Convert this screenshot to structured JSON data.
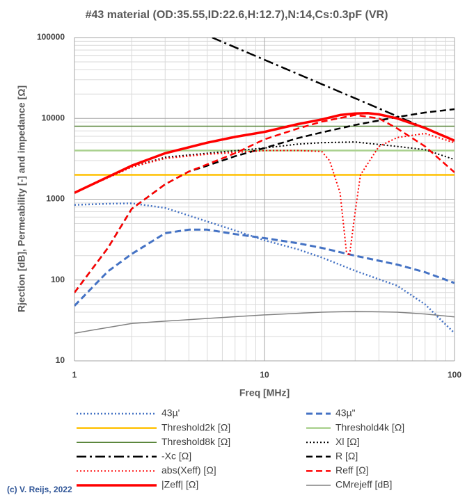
{
  "chart_data": {
    "type": "line",
    "title": "#43 material  (OD:35.55,ID:22.6,H:12.7),N:14,Cs:0.3pF (VR)",
    "x_label": "Freq [MHz]",
    "y_label": "Rjection [dB], Permeability [-] and impedance [Ω]",
    "credit": "(c) V. Reijs, 2022",
    "xscale": "log",
    "yscale": "log",
    "xlim": [
      1,
      100
    ],
    "xticks": [
      1,
      10,
      100
    ],
    "ylim": [
      10,
      100000
    ],
    "yticks": [
      10,
      100,
      1000,
      10000,
      100000
    ],
    "grid": true,
    "minor_grid": true,
    "legend": "bottom",
    "series": [
      {
        "name": "43µ'",
        "color": "#4472c4",
        "dash": "dot",
        "width": 2.5,
        "x": [
          1,
          1.5,
          2,
          3,
          5,
          7,
          10,
          15,
          20,
          30,
          50,
          70,
          100
        ],
        "values": [
          850,
          880,
          890,
          780,
          530,
          410,
          310,
          240,
          190,
          130,
          85,
          50,
          22
        ]
      },
      {
        "name": "43µ\"",
        "color": "#4472c4",
        "dash": "dash",
        "width": 3,
        "x": [
          1,
          1.5,
          2,
          3,
          4,
          5,
          7,
          10,
          15,
          20,
          30,
          50,
          70,
          100
        ],
        "values": [
          48,
          128,
          210,
          380,
          420,
          420,
          370,
          330,
          285,
          250,
          200,
          155,
          125,
          92
        ]
      },
      {
        "name": "Threshold2k [Ω]",
        "color": "#ffc000",
        "dash": "solid",
        "width": 2.5,
        "x": [
          1,
          100
        ],
        "values": [
          2000,
          2000
        ]
      },
      {
        "name": "Threshold4k [Ω]",
        "color": "#a9d18e",
        "dash": "solid",
        "width": 2.5,
        "x": [
          1,
          100
        ],
        "values": [
          4000,
          4000
        ]
      },
      {
        "name": "Threshold8k [Ω]",
        "color": "#548235",
        "dash": "solid",
        "width": 1.5,
        "x": [
          1,
          100
        ],
        "values": [
          8000,
          8000
        ]
      },
      {
        "name": "Xl [Ω]",
        "color": "#000000",
        "dash": "dot",
        "width": 2,
        "x": [
          1,
          2,
          3,
          5,
          10,
          15,
          20,
          30,
          50,
          70,
          100
        ],
        "values": [
          1200,
          2500,
          3300,
          3700,
          4300,
          4800,
          5000,
          5100,
          4500,
          4100,
          3100
        ]
      },
      {
        "name": "-Xc [Ω]",
        "color": "#000000",
        "dash": "dashdot",
        "width": 2.5,
        "x": [
          5.305,
          10,
          20,
          30,
          50,
          70,
          100
        ],
        "values": [
          100000,
          53050,
          26500,
          17700,
          10600,
          7580,
          5305
        ]
      },
      {
        "name": "R [Ω]",
        "color": "#000000",
        "dash": "dash",
        "width": 2.5,
        "x": [
          1,
          1.5,
          2,
          3,
          4,
          5,
          7,
          10,
          15,
          20,
          30,
          50,
          70,
          100
        ],
        "values": [
          70,
          250,
          760,
          1530,
          2200,
          2600,
          3400,
          4300,
          5700,
          6700,
          8300,
          10400,
          11800,
          13000
        ]
      },
      {
        "name": "abs(Xeff) [Ω]",
        "color": "#ff0000",
        "dash": "dot",
        "width": 2,
        "x": [
          1,
          2,
          3,
          5,
          10,
          15,
          20,
          22,
          25,
          27,
          28,
          30,
          32,
          40,
          50,
          70,
          100
        ],
        "values": [
          1200,
          2500,
          3200,
          3600,
          4000,
          4000,
          3900,
          3000,
          1200,
          220,
          200,
          700,
          2000,
          4500,
          5800,
          6500,
          5000
        ]
      },
      {
        "name": "Reff [Ω]",
        "color": "#ff0000",
        "dash": "dash",
        "width": 2.5,
        "x": [
          1,
          1.5,
          2,
          3,
          4,
          5,
          7,
          10,
          15,
          20,
          30,
          40,
          50,
          70,
          100
        ],
        "values": [
          70,
          250,
          760,
          1530,
          2200,
          2700,
          3700,
          5500,
          7500,
          9100,
          11000,
          10000,
          7500,
          4500,
          2150
        ]
      },
      {
        "name": "|Zeff| [Ω]",
        "color": "#ff0000",
        "dash": "solid",
        "width": 3.5,
        "x": [
          1,
          2,
          3,
          5,
          7,
          10,
          15,
          20,
          25,
          30,
          35,
          40,
          50,
          70,
          100
        ],
        "values": [
          1200,
          2600,
          3700,
          5000,
          5900,
          6800,
          8500,
          9700,
          11000,
          11500,
          11600,
          11200,
          10000,
          7600,
          5300
        ]
      },
      {
        "name": "CMrejeff [dB]",
        "color": "#808080",
        "dash": "solid",
        "width": 1.5,
        "x": [
          1,
          2,
          3,
          5,
          10,
          20,
          30,
          50,
          70,
          100
        ],
        "values": [
          22,
          29,
          31,
          33.5,
          37,
          40,
          41,
          40,
          38,
          35
        ]
      }
    ]
  }
}
